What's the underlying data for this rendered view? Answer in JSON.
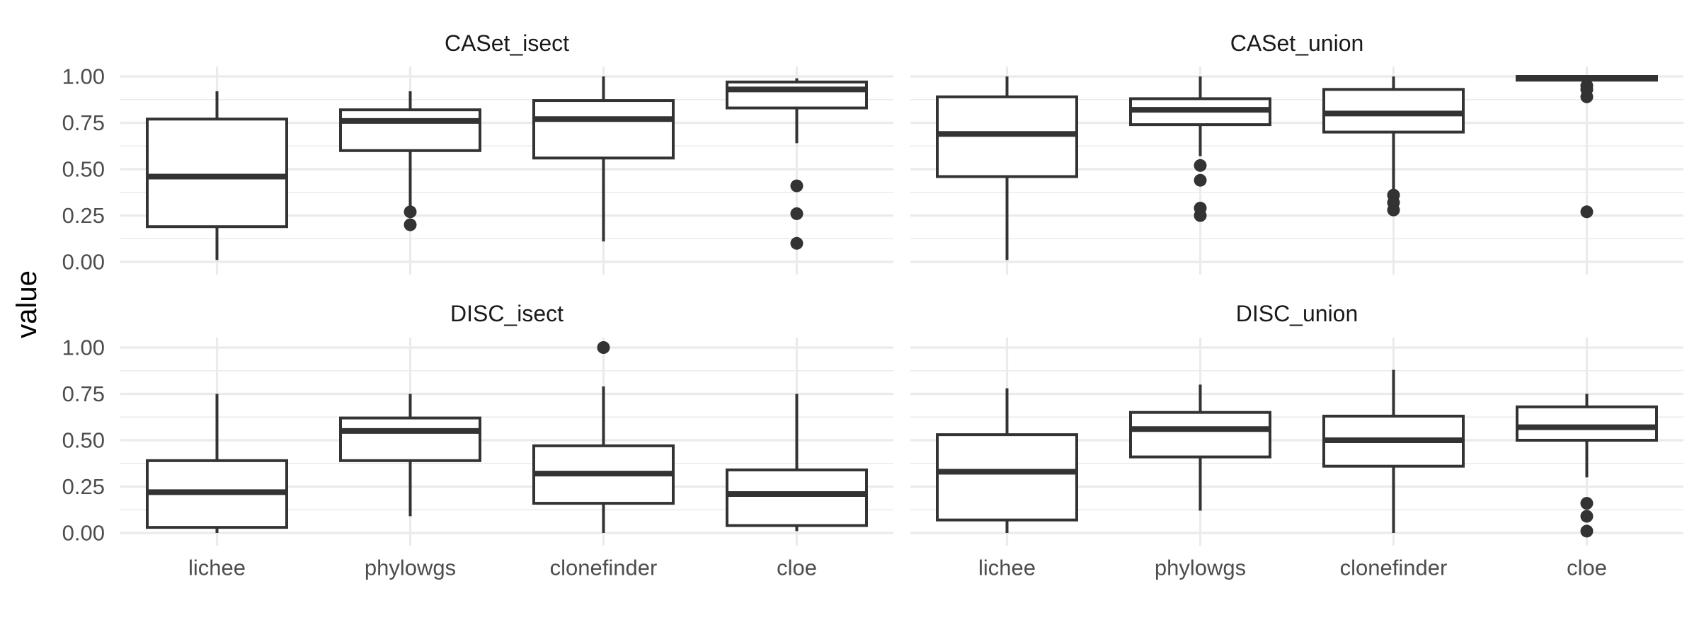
{
  "chart_data": {
    "type": "boxplot",
    "ylabel": "value",
    "xlabel": "",
    "categories": [
      "lichee",
      "phylowgs",
      "clonefinder",
      "cloe"
    ],
    "y_ticks": [
      "0.00",
      "0.25",
      "0.50",
      "0.75",
      "1.00"
    ],
    "ylim": [
      0,
      1
    ],
    "grid": true,
    "legend": "none",
    "panels": [
      {
        "title": "CASet_isect",
        "boxes": [
          {
            "category": "lichee",
            "min": 0.01,
            "q1": 0.19,
            "median": 0.46,
            "q3": 0.77,
            "max": 0.92,
            "outliers": []
          },
          {
            "category": "phylowgs",
            "min": 0.28,
            "q1": 0.6,
            "median": 0.76,
            "q3": 0.82,
            "max": 0.92,
            "outliers": [
              0.27,
              0.2
            ]
          },
          {
            "category": "clonefinder",
            "min": 0.11,
            "q1": 0.56,
            "median": 0.77,
            "q3": 0.87,
            "max": 1.0,
            "outliers": []
          },
          {
            "category": "cloe",
            "min": 0.64,
            "q1": 0.83,
            "median": 0.93,
            "q3": 0.97,
            "max": 0.99,
            "outliers": [
              0.41,
              0.26,
              0.1
            ]
          }
        ]
      },
      {
        "title": "CASet_union",
        "boxes": [
          {
            "category": "lichee",
            "min": 0.01,
            "q1": 0.46,
            "median": 0.69,
            "q3": 0.89,
            "max": 1.0,
            "outliers": []
          },
          {
            "category": "phylowgs",
            "min": 0.57,
            "q1": 0.74,
            "median": 0.82,
            "q3": 0.88,
            "max": 1.0,
            "outliers": [
              0.52,
              0.44,
              0.29,
              0.25
            ]
          },
          {
            "category": "clonefinder",
            "min": 0.39,
            "q1": 0.7,
            "median": 0.8,
            "q3": 0.93,
            "max": 1.0,
            "outliers": [
              0.36,
              0.32,
              0.28
            ]
          },
          {
            "category": "cloe",
            "min": 0.97,
            "q1": 0.98,
            "median": 0.99,
            "q3": 1.0,
            "max": 1.0,
            "outliers": [
              0.95,
              0.93,
              0.89,
              0.27
            ]
          }
        ]
      },
      {
        "title": "DISC_isect",
        "boxes": [
          {
            "category": "lichee",
            "min": 0.0,
            "q1": 0.03,
            "median": 0.22,
            "q3": 0.39,
            "max": 0.75,
            "outliers": []
          },
          {
            "category": "phylowgs",
            "min": 0.09,
            "q1": 0.39,
            "median": 0.55,
            "q3": 0.62,
            "max": 0.75,
            "outliers": []
          },
          {
            "category": "clonefinder",
            "min": 0.0,
            "q1": 0.16,
            "median": 0.32,
            "q3": 0.47,
            "max": 0.79,
            "outliers": [
              1.0
            ]
          },
          {
            "category": "cloe",
            "min": 0.01,
            "q1": 0.04,
            "median": 0.21,
            "q3": 0.34,
            "max": 0.75,
            "outliers": []
          }
        ]
      },
      {
        "title": "DISC_union",
        "boxes": [
          {
            "category": "lichee",
            "min": 0.0,
            "q1": 0.07,
            "median": 0.33,
            "q3": 0.53,
            "max": 0.78,
            "outliers": []
          },
          {
            "category": "phylowgs",
            "min": 0.12,
            "q1": 0.41,
            "median": 0.56,
            "q3": 0.65,
            "max": 0.8,
            "outliers": []
          },
          {
            "category": "clonefinder",
            "min": 0.0,
            "q1": 0.36,
            "median": 0.5,
            "q3": 0.63,
            "max": 0.88,
            "outliers": []
          },
          {
            "category": "cloe",
            "min": 0.3,
            "q1": 0.5,
            "median": 0.57,
            "q3": 0.68,
            "max": 0.75,
            "outliers": [
              0.16,
              0.09,
              0.01
            ]
          }
        ]
      }
    ]
  }
}
